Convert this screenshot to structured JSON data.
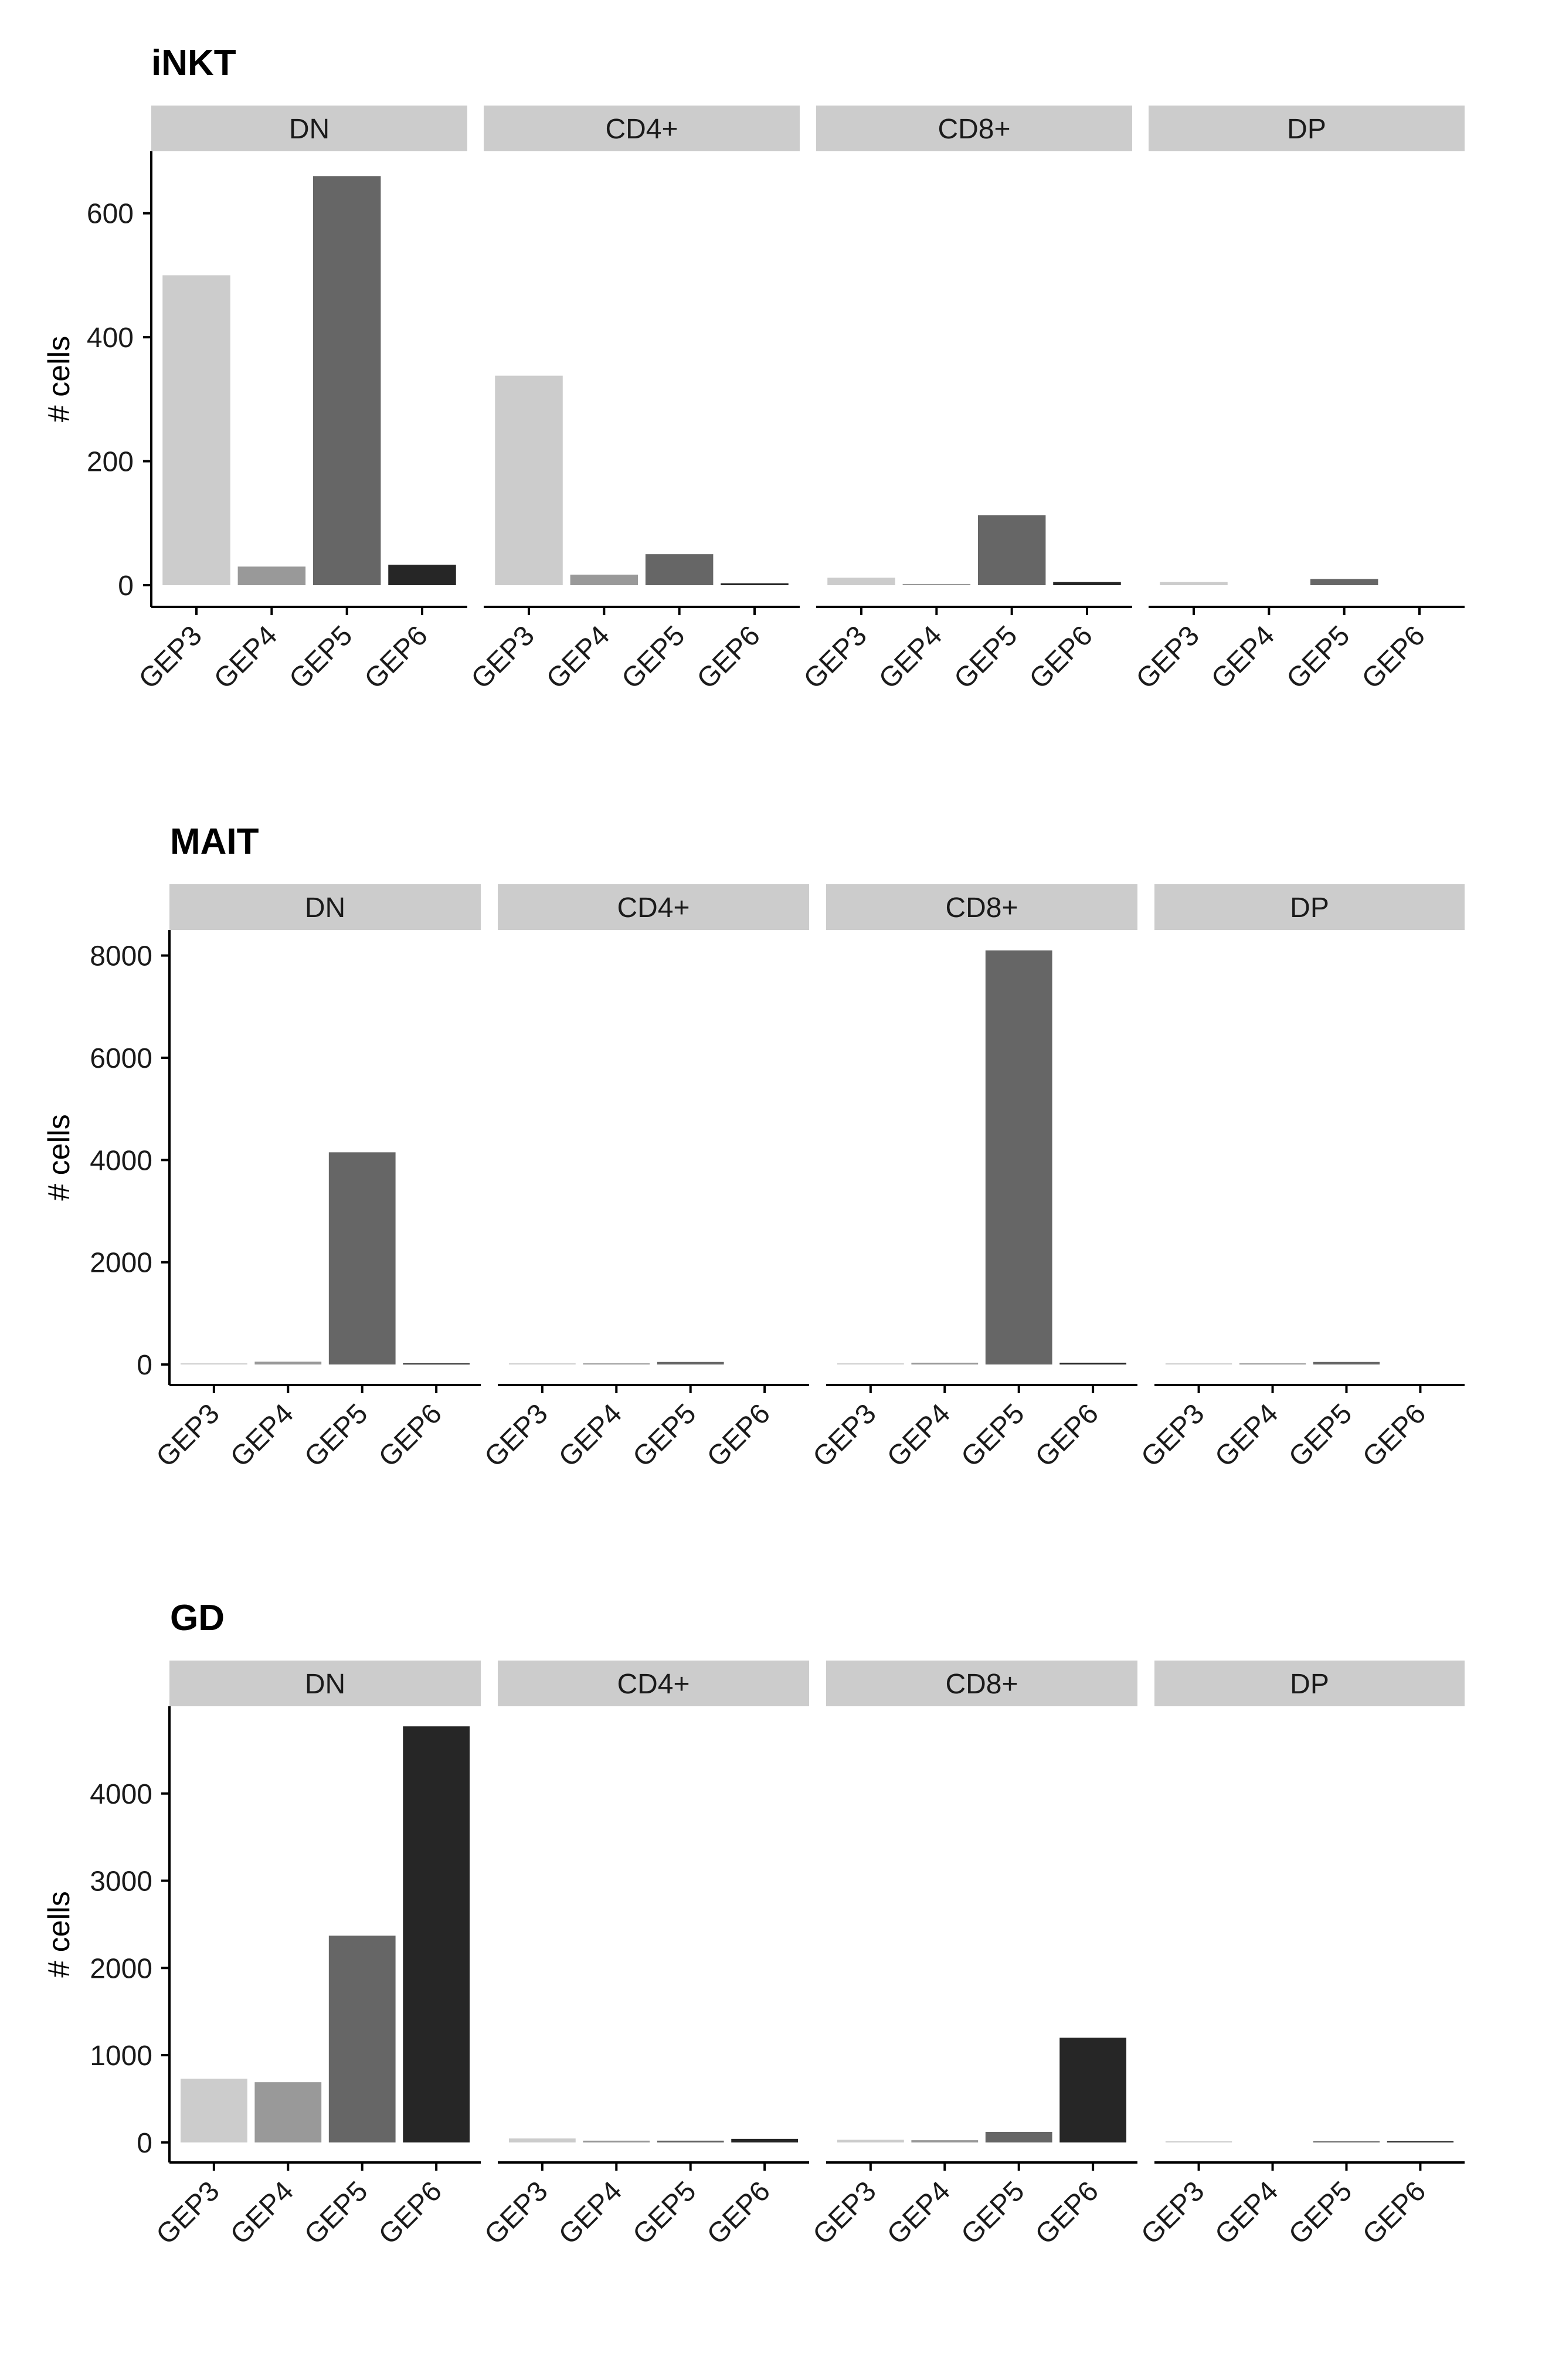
{
  "colors": {
    "GEP3": "#cccccc",
    "GEP4": "#999999",
    "GEP5": "#666666",
    "GEP6": "#262626",
    "strip": "#cccccc"
  },
  "chart_data": [
    {
      "type": "bar",
      "title": "iNKT",
      "ylabel": "# cells",
      "facets": [
        "DN",
        "CD4+",
        "CD8+",
        "DP"
      ],
      "categories": [
        "GEP3",
        "GEP4",
        "GEP5",
        "GEP6"
      ],
      "yticks": [
        0,
        200,
        400,
        600
      ],
      "ylim": [
        -35,
        700
      ],
      "values": [
        [
          500,
          30,
          660,
          33
        ],
        [
          338,
          17,
          50,
          3
        ],
        [
          12,
          2,
          113,
          5
        ],
        [
          5,
          0,
          10,
          0
        ]
      ]
    },
    {
      "type": "bar",
      "title": "MAIT",
      "ylabel": "# cells",
      "facets": [
        "DN",
        "CD4+",
        "CD8+",
        "DP"
      ],
      "categories": [
        "GEP3",
        "GEP4",
        "GEP5",
        "GEP6"
      ],
      "yticks": [
        0,
        2000,
        4000,
        6000,
        8000
      ],
      "ylim": [
        -400,
        8500
      ],
      "values": [
        [
          10,
          55,
          4150,
          20
        ],
        [
          3,
          10,
          50,
          0
        ],
        [
          15,
          35,
          8100,
          35
        ],
        [
          3,
          10,
          50,
          0
        ]
      ]
    },
    {
      "type": "bar",
      "title": "GD",
      "ylabel": "# cells",
      "facets": [
        "DN",
        "CD4+",
        "CD8+",
        "DP"
      ],
      "categories": [
        "GEP3",
        "GEP4",
        "GEP5",
        "GEP6"
      ],
      "yticks": [
        0,
        1000,
        2000,
        3000,
        4000
      ],
      "ylim": [
        -230,
        5000
      ],
      "values": [
        [
          730,
          690,
          2370,
          4770
        ],
        [
          45,
          20,
          20,
          40
        ],
        [
          30,
          25,
          120,
          1200
        ],
        [
          3,
          0,
          12,
          15
        ]
      ]
    }
  ]
}
